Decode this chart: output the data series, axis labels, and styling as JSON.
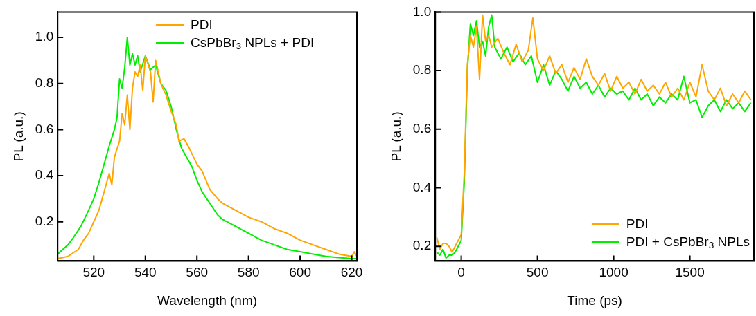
{
  "chart_data": [
    {
      "type": "line",
      "xlabel": "Wavelength (nm)",
      "ylabel": "PL (a.u.)",
      "xlim": [
        506,
        622
      ],
      "ylim": [
        0.03,
        1.11
      ],
      "xticks": [
        520,
        540,
        560,
        580,
        600,
        620
      ],
      "yticks": [
        0.2,
        0.4,
        0.6,
        0.8,
        {
          "value": 1.0,
          "label": "1.0"
        }
      ],
      "grid": false,
      "legend": "top",
      "line_style": "solid",
      "marker": "none",
      "series": [
        {
          "name": "PDI",
          "color": "#ffa500",
          "x": [
            506,
            510,
            514,
            516,
            518,
            520,
            522,
            524,
            526,
            527,
            528,
            530,
            531,
            532,
            533,
            534,
            535,
            536,
            537,
            538,
            539,
            540,
            542,
            543,
            544,
            545,
            546,
            548,
            550,
            552,
            553,
            555,
            557,
            560,
            562,
            565,
            568,
            570,
            575,
            580,
            585,
            590,
            595,
            600,
            605,
            610,
            615,
            620,
            621,
            622
          ],
          "values": [
            0.04,
            0.05,
            0.08,
            0.12,
            0.15,
            0.2,
            0.25,
            0.33,
            0.41,
            0.36,
            0.48,
            0.55,
            0.67,
            0.62,
            0.75,
            0.6,
            0.78,
            0.85,
            0.83,
            0.88,
            0.77,
            0.92,
            0.85,
            0.72,
            0.9,
            0.85,
            0.8,
            0.75,
            0.68,
            0.62,
            0.55,
            0.56,
            0.52,
            0.45,
            0.42,
            0.34,
            0.3,
            0.28,
            0.25,
            0.22,
            0.2,
            0.17,
            0.15,
            0.12,
            0.1,
            0.08,
            0.06,
            0.05,
            0.07,
            0.05
          ]
        },
        {
          "name": "CsPbBr$_{3}$ NPLs + PDI",
          "color": "#00ee00",
          "x": [
            506,
            510,
            512,
            515,
            518,
            520,
            522,
            524,
            526,
            528,
            529,
            530,
            531,
            532,
            533,
            534,
            535,
            536,
            537,
            538,
            540,
            542,
            544,
            546,
            548,
            550,
            552,
            554,
            556,
            558,
            560,
            562,
            565,
            568,
            570,
            575,
            580,
            585,
            590,
            595,
            600,
            605,
            610,
            615,
            620,
            622
          ],
          "values": [
            0.06,
            0.1,
            0.13,
            0.18,
            0.25,
            0.3,
            0.37,
            0.45,
            0.53,
            0.6,
            0.65,
            0.82,
            0.78,
            0.87,
            1.0,
            0.88,
            0.93,
            0.88,
            0.92,
            0.85,
            0.92,
            0.86,
            0.88,
            0.8,
            0.77,
            0.7,
            0.6,
            0.52,
            0.48,
            0.44,
            0.38,
            0.33,
            0.28,
            0.23,
            0.21,
            0.18,
            0.15,
            0.12,
            0.1,
            0.08,
            0.07,
            0.06,
            0.05,
            0.045,
            0.04,
            0.04
          ]
        }
      ]
    },
    {
      "type": "line",
      "xlabel": "Time (ps)",
      "ylabel": "PL (a.u.)",
      "xlim": [
        -170,
        1920
      ],
      "ylim": [
        0.15,
        1.0
      ],
      "xticks": [
        0,
        500,
        1000,
        1500
      ],
      "yticks": [
        0.2,
        0.4,
        0.6,
        0.8,
        {
          "value": 1.0,
          "label": "1.0"
        }
      ],
      "grid": false,
      "legend": "bottom right",
      "line_style": "solid",
      "marker": "none",
      "series": [
        {
          "name": "PDI",
          "color": "#ffa500",
          "x": [
            -160,
            -140,
            -120,
            -100,
            -80,
            -60,
            -40,
            -20,
            0,
            20,
            40,
            60,
            80,
            100,
            120,
            140,
            160,
            180,
            200,
            240,
            280,
            320,
            360,
            400,
            440,
            470,
            500,
            540,
            580,
            620,
            660,
            700,
            740,
            780,
            820,
            860,
            900,
            940,
            980,
            1020,
            1060,
            1100,
            1140,
            1180,
            1220,
            1260,
            1300,
            1340,
            1380,
            1420,
            1460,
            1500,
            1540,
            1580,
            1620,
            1660,
            1700,
            1740,
            1780,
            1820,
            1860,
            1900
          ],
          "values": [
            0.23,
            0.19,
            0.21,
            0.21,
            0.2,
            0.18,
            0.2,
            0.22,
            0.24,
            0.45,
            0.82,
            0.92,
            0.88,
            0.95,
            0.77,
            0.99,
            0.9,
            0.92,
            0.88,
            0.91,
            0.86,
            0.82,
            0.89,
            0.83,
            0.87,
            0.98,
            0.84,
            0.8,
            0.85,
            0.79,
            0.82,
            0.76,
            0.81,
            0.77,
            0.84,
            0.78,
            0.75,
            0.79,
            0.73,
            0.78,
            0.74,
            0.76,
            0.72,
            0.77,
            0.73,
            0.75,
            0.72,
            0.76,
            0.71,
            0.74,
            0.7,
            0.76,
            0.71,
            0.82,
            0.73,
            0.7,
            0.74,
            0.68,
            0.72,
            0.69,
            0.73,
            0.7
          ]
        },
        {
          "name": "PDI + CsPbBr$_{3}$ NPLs",
          "color": "#00ee00",
          "x": [
            -160,
            -140,
            -120,
            -100,
            -80,
            -60,
            -40,
            -20,
            0,
            20,
            40,
            60,
            80,
            100,
            120,
            140,
            160,
            180,
            200,
            220,
            260,
            300,
            340,
            380,
            420,
            460,
            500,
            540,
            580,
            620,
            660,
            700,
            740,
            780,
            820,
            860,
            900,
            940,
            980,
            1020,
            1060,
            1100,
            1140,
            1180,
            1220,
            1260,
            1300,
            1340,
            1380,
            1420,
            1460,
            1500,
            1540,
            1580,
            1620,
            1660,
            1700,
            1740,
            1780,
            1820,
            1860,
            1900
          ],
          "values": [
            0.18,
            0.17,
            0.19,
            0.16,
            0.17,
            0.17,
            0.18,
            0.2,
            0.22,
            0.42,
            0.8,
            0.96,
            0.92,
            0.97,
            0.88,
            0.9,
            0.85,
            0.95,
            0.99,
            0.88,
            0.84,
            0.88,
            0.83,
            0.86,
            0.82,
            0.85,
            0.76,
            0.82,
            0.75,
            0.8,
            0.77,
            0.73,
            0.78,
            0.74,
            0.76,
            0.72,
            0.75,
            0.71,
            0.74,
            0.72,
            0.73,
            0.7,
            0.74,
            0.7,
            0.72,
            0.68,
            0.71,
            0.69,
            0.72,
            0.7,
            0.78,
            0.69,
            0.7,
            0.64,
            0.68,
            0.7,
            0.66,
            0.7,
            0.67,
            0.69,
            0.66,
            0.69
          ]
        }
      ]
    }
  ]
}
